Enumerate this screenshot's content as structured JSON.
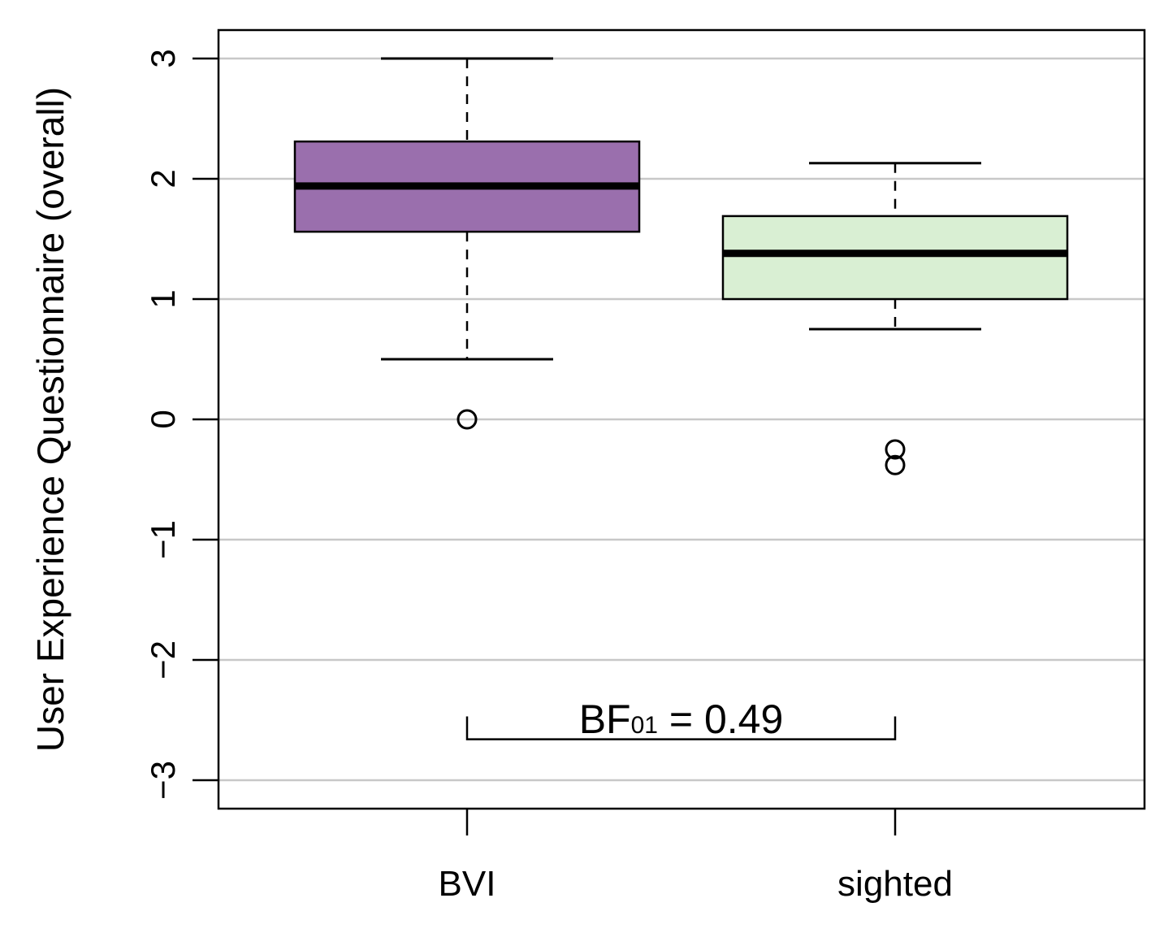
{
  "chart_data": {
    "type": "boxplot",
    "title": "",
    "xlabel": "",
    "ylabel": "User Experience Questionnaire (overall)",
    "ylim": [
      -3.25,
      3.25
    ],
    "yticks": [
      3,
      2,
      1,
      0,
      -1,
      -2,
      -3
    ],
    "ytick_labels": [
      "3",
      "2",
      "1",
      "0",
      "−1",
      "−2",
      "−3"
    ],
    "grid": true,
    "categories": [
      "BVI",
      "sighted"
    ],
    "boxes": [
      {
        "name": "BVI",
        "whisker_low": 0.5,
        "q1": 1.56,
        "median": 1.94,
        "q3": 2.31,
        "whisker_high": 3.0,
        "outliers": [
          0.0
        ],
        "color": "#9a6fad"
      },
      {
        "name": "sighted",
        "whisker_low": 0.75,
        "q1": 1.0,
        "median": 1.38,
        "q3": 1.69,
        "whisker_high": 2.13,
        "outliers": [
          -0.25,
          -0.38
        ],
        "color": "#d9efd3"
      }
    ],
    "annotation": {
      "prefix": "BF",
      "subscript": "01",
      "suffix": " = 0.49",
      "bracket_y": -2.66,
      "bracket_tick_top": -2.47,
      "from": "BVI",
      "to": "sighted"
    }
  }
}
